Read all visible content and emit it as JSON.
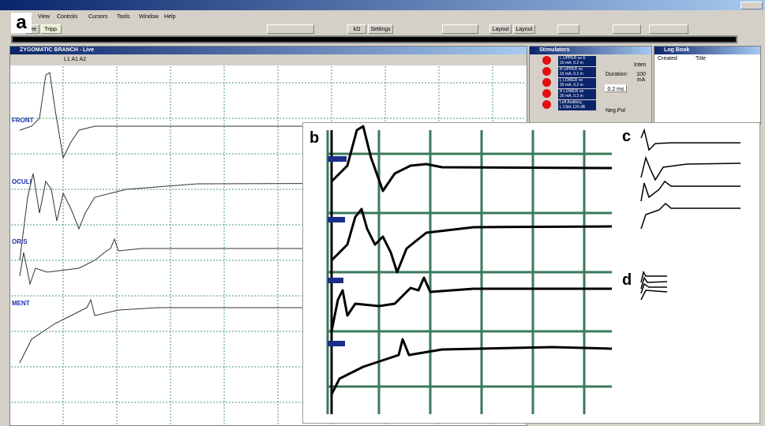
{
  "panel_labels": {
    "a": "a",
    "b": "b",
    "c": "c",
    "d": "d"
  },
  "menu": [
    "View",
    "Controls",
    "Cursors",
    "Tools",
    "Window",
    "Help"
  ],
  "toolbar": {
    "mode_left": "ree",
    "mode_right": "Tripp.",
    "impedance": "kΩ",
    "settings": "Settings",
    "layout_1": "Layout",
    "layout_2": "Layout"
  },
  "main_window": {
    "title": "ZYGOMATIC BRANCH - Live",
    "trace_toolbar": "L1  A1  A2",
    "channels": [
      "FRONT",
      "OCULI",
      "ORIS",
      "MENT"
    ]
  },
  "stimulators": {
    "title": "Stimulators",
    "items": [
      {
        "line1": "L UPPER on E",
        "line2": "15 mA, 0.2 m"
      },
      {
        "line1": "R UPPER on",
        "line2": "15 mA, 0.2 m"
      },
      {
        "line1": "L LOWER on",
        "line2": "25 mA, 0.2 m"
      },
      {
        "line1": "R LOWER on",
        "line2": "25 mA, 0.2 m"
      },
      {
        "line1": "Left Auditory,",
        "line2": "L Click 120 dB"
      }
    ],
    "duration_label": "Duration:",
    "duration_value": "0.2 ms",
    "intensity_label": "Inten",
    "intensity_value": "100 mA",
    "neg_pol": "Neg.Pol"
  },
  "log_book": {
    "title": "Log Book",
    "columns": [
      "Created",
      "Title"
    ]
  }
}
